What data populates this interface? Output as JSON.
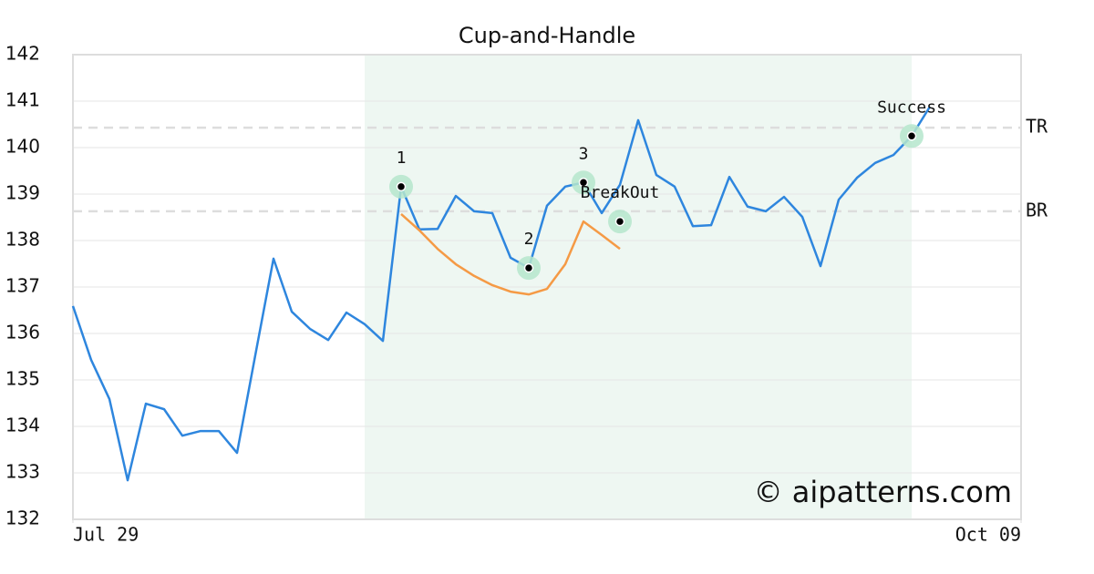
{
  "chart_data": {
    "type": "line",
    "title": "Cup-and-Handle",
    "x": [
      0,
      1,
      2,
      3,
      4,
      5,
      6,
      7,
      8,
      9,
      10,
      11,
      12,
      13,
      14,
      15,
      16,
      17,
      18,
      19,
      20,
      21,
      22,
      23,
      24,
      25,
      26,
      27,
      28,
      29,
      30,
      31,
      32,
      33,
      34,
      35,
      36,
      37,
      38,
      39,
      40,
      41,
      42,
      43,
      44,
      45,
      46,
      47
    ],
    "xlim": [
      0,
      52
    ],
    "xticks": [
      {
        "value": 0,
        "label": "Jul 29"
      },
      {
        "value": 52,
        "label": "Oct 09"
      }
    ],
    "ylim": [
      132,
      142
    ],
    "yticks": [
      132,
      133,
      134,
      135,
      136,
      137,
      138,
      139,
      140,
      141,
      142
    ],
    "grid": true,
    "series": [
      {
        "color": "#2e86de",
        "values": [
          136.59,
          135.43,
          134.59,
          132.84,
          134.49,
          134.37,
          133.8,
          133.9,
          133.9,
          133.43,
          135.53,
          137.61,
          136.47,
          136.1,
          135.86,
          136.45,
          136.2,
          135.84,
          139.16,
          138.24,
          138.25,
          138.96,
          138.63,
          138.59,
          137.63,
          137.41,
          138.75,
          139.16,
          139.25,
          138.59,
          139.2,
          140.59,
          139.41,
          139.16,
          138.31,
          138.33,
          139.37,
          138.73,
          138.63,
          138.94,
          138.51,
          137.45,
          138.88,
          139.35,
          139.67,
          139.84,
          140.25,
          140.88
        ]
      },
      {
        "color": "#f59a45",
        "values": [
          null,
          null,
          null,
          null,
          null,
          null,
          null,
          null,
          null,
          null,
          null,
          null,
          null,
          null,
          null,
          null,
          null,
          null,
          138.57,
          138.22,
          137.82,
          137.49,
          137.24,
          137.04,
          136.9,
          136.84,
          136.96,
          137.49,
          138.41,
          138.12,
          137.82,
          null,
          null,
          null,
          null,
          null,
          null,
          null,
          null,
          null,
          null,
          null,
          null,
          null,
          null,
          null,
          null,
          null
        ]
      }
    ],
    "highlight_x": [
      16,
      46
    ],
    "hlines": [
      {
        "label": "TR",
        "value": 140.43
      },
      {
        "label": "BR",
        "value": 138.63
      }
    ],
    "annotations": [
      {
        "label": "1",
        "x": 18,
        "y": 139.16
      },
      {
        "label": "2",
        "x": 25,
        "y": 137.41
      },
      {
        "label": "3",
        "x": 28,
        "y": 139.25
      },
      {
        "label": "BreakOut",
        "x": 30,
        "y": 138.41
      },
      {
        "label": "Success",
        "x": 46,
        "y": 140.25
      }
    ],
    "watermark": "© aipatterns.com"
  }
}
